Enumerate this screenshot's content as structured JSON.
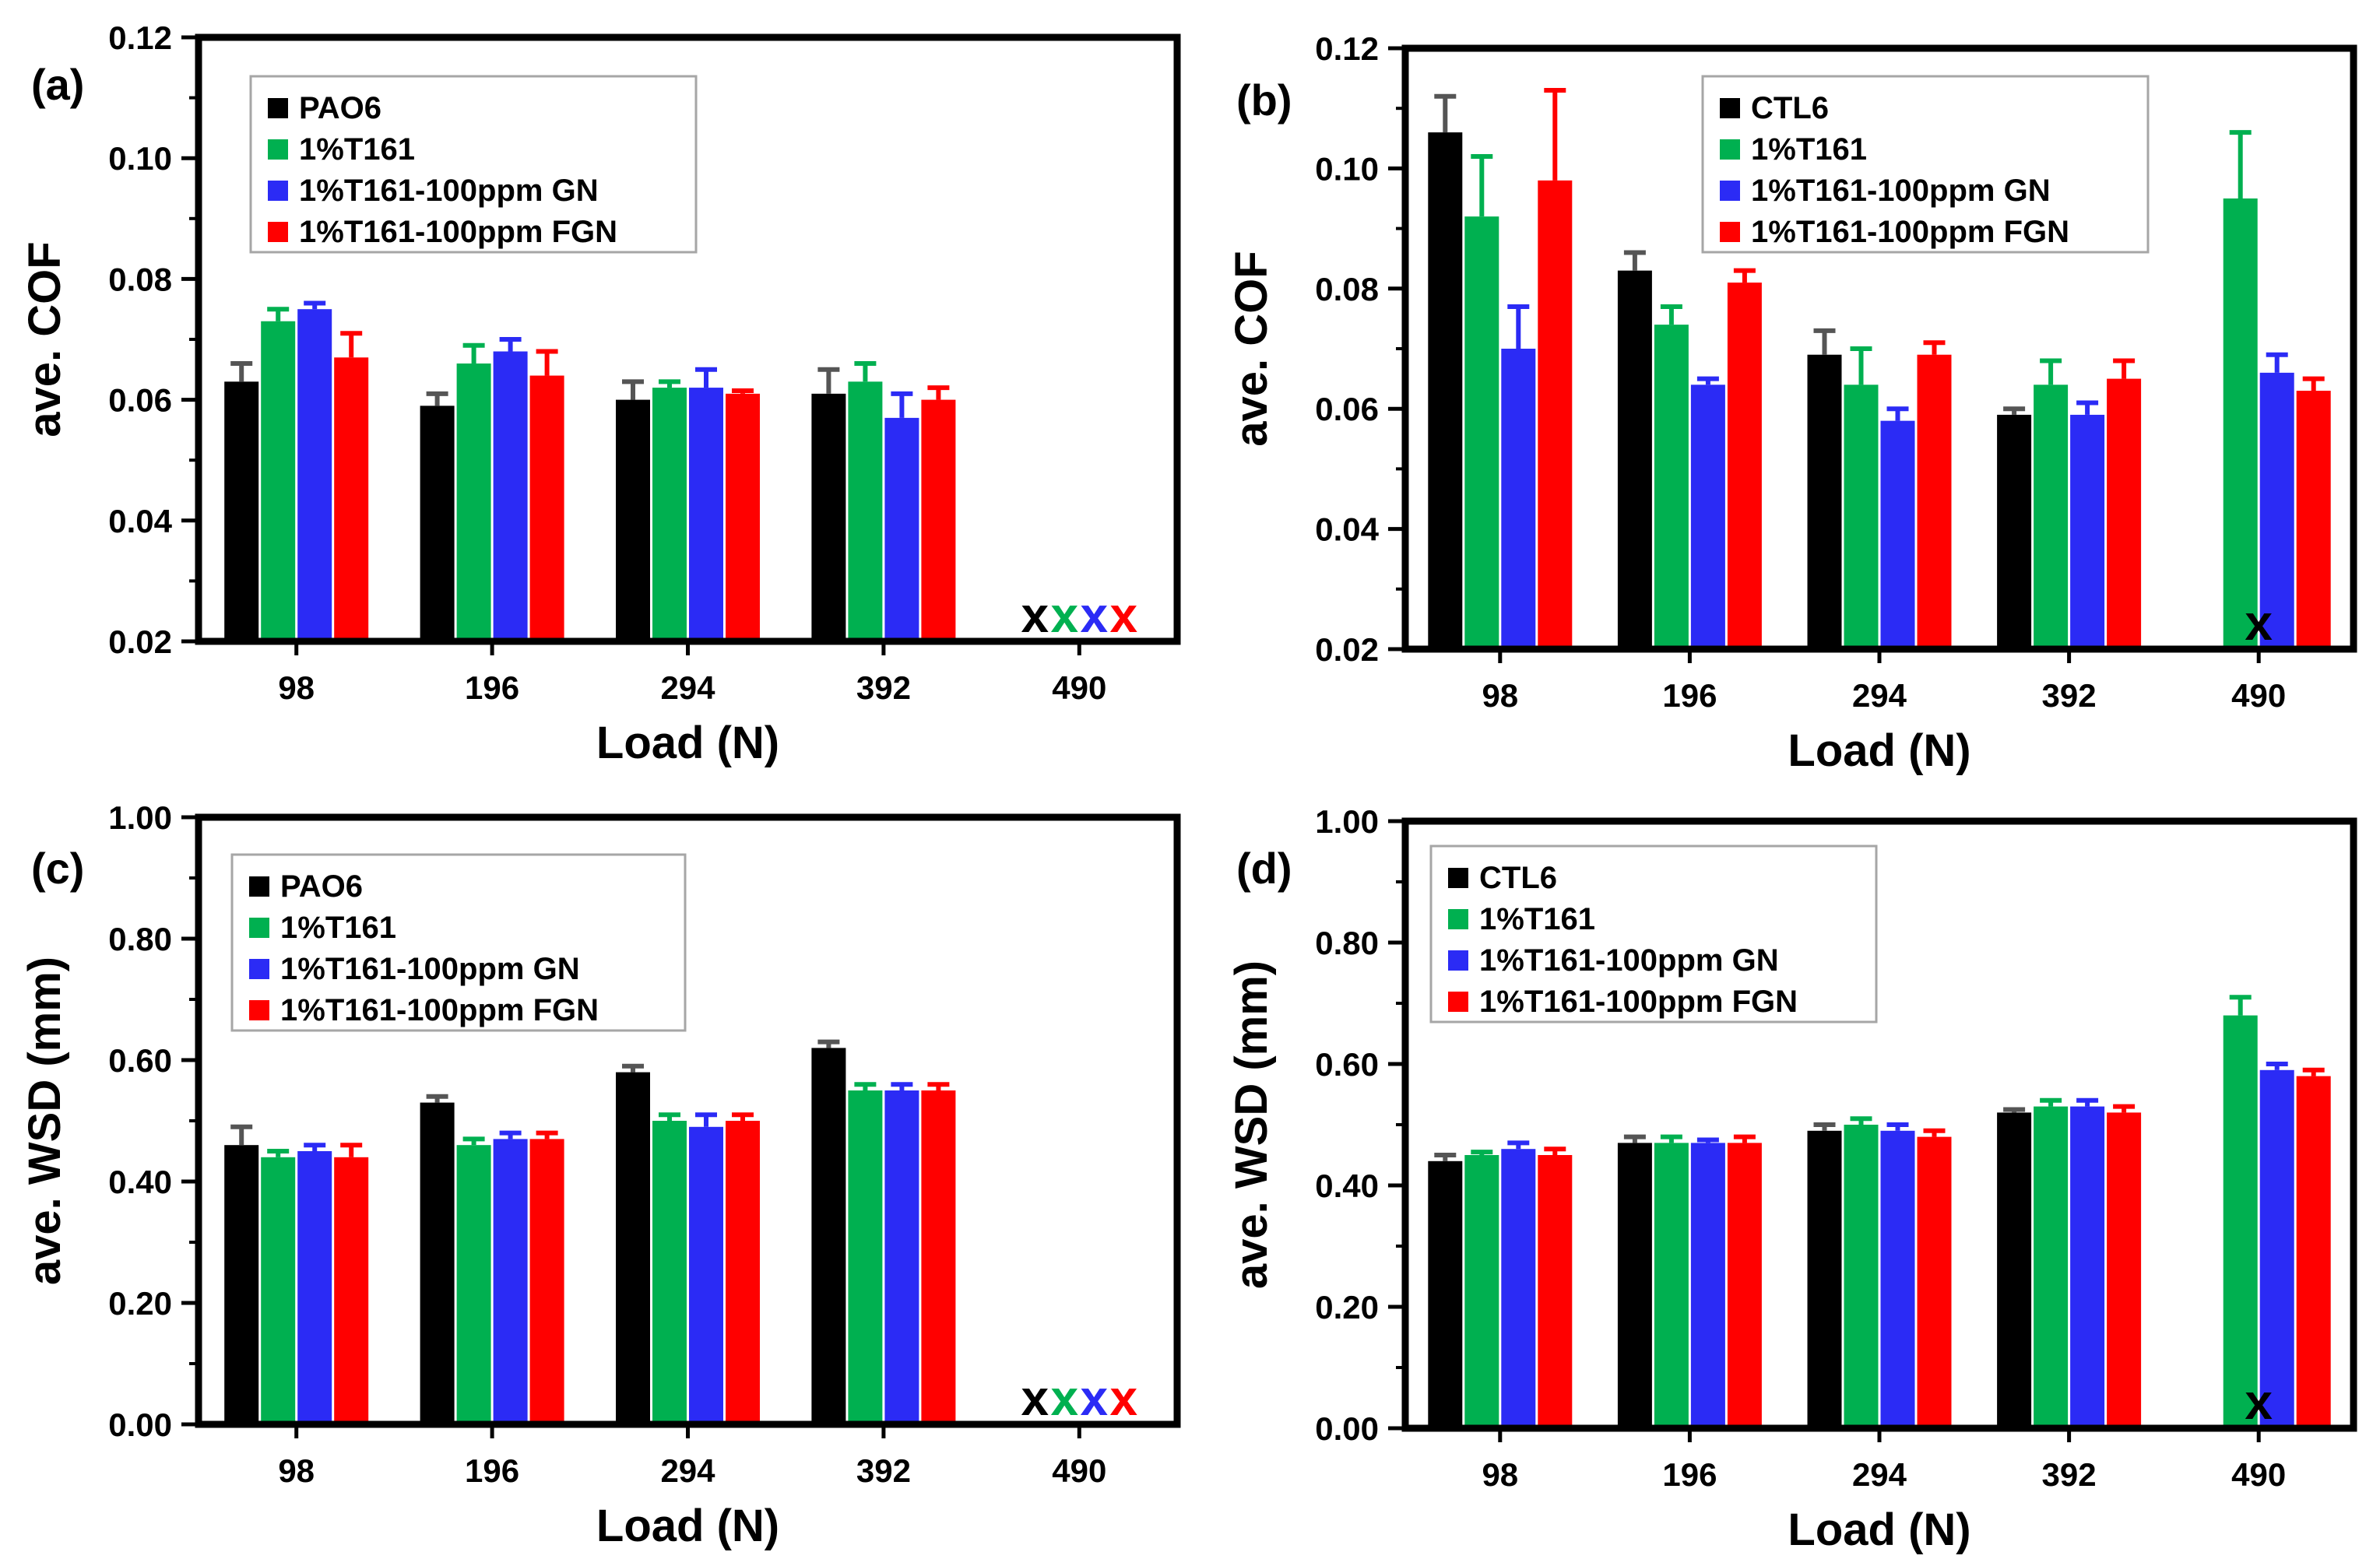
{
  "figure": {
    "colors": {
      "black": "#000000",
      "green": "#00b050",
      "blue": "#2b2bf5",
      "red": "#ff0000",
      "errorbar_black": "#555555",
      "legend_border": "#a6a6a6"
    },
    "failure_marker": "x"
  },
  "chart_data": [
    {
      "id": "a",
      "type": "bar",
      "panel_label": "(a)",
      "xlabel": "Load (N)",
      "ylabel": "ave. COF",
      "ylim": [
        0.02,
        0.12
      ],
      "yticks": [
        "0.02",
        "0.04",
        "0.06",
        "0.08",
        "0.10",
        "0.12"
      ],
      "categories": [
        "98",
        "196",
        "294",
        "392",
        "490"
      ],
      "legend_position": "top-left",
      "series": [
        {
          "name": "PAO6",
          "color": "black",
          "values": [
            0.063,
            0.059,
            0.06,
            0.061,
            null
          ],
          "errors": [
            0.003,
            0.002,
            0.003,
            0.004,
            null
          ],
          "failed": [
            false,
            false,
            false,
            false,
            true
          ]
        },
        {
          "name": "1%T161",
          "color": "green",
          "values": [
            0.073,
            0.066,
            0.062,
            0.063,
            null
          ],
          "errors": [
            0.002,
            0.003,
            0.001,
            0.003,
            null
          ],
          "failed": [
            false,
            false,
            false,
            false,
            true
          ]
        },
        {
          "name": "1%T161-100ppm GN",
          "color": "blue",
          "values": [
            0.075,
            0.068,
            0.062,
            0.057,
            null
          ],
          "errors": [
            0.001,
            0.002,
            0.003,
            0.004,
            null
          ],
          "failed": [
            false,
            false,
            false,
            false,
            true
          ]
        },
        {
          "name": "1%T161-100ppm FGN",
          "color": "red",
          "values": [
            0.067,
            0.064,
            0.061,
            0.06,
            null
          ],
          "errors": [
            0.004,
            0.004,
            0.0005,
            0.002,
            null
          ],
          "failed": [
            false,
            false,
            false,
            false,
            true
          ]
        }
      ]
    },
    {
      "id": "b",
      "type": "bar",
      "panel_label": "(b)",
      "xlabel": "Load (N)",
      "ylabel": "ave. COF",
      "ylim": [
        0.02,
        0.12
      ],
      "yticks": [
        "0.02",
        "0.04",
        "0.06",
        "0.08",
        "0.10",
        "0.12"
      ],
      "categories": [
        "98",
        "196",
        "294",
        "392",
        "490"
      ],
      "legend_position": "top-center",
      "series": [
        {
          "name": "CTL6",
          "color": "black",
          "values": [
            0.106,
            0.083,
            0.069,
            0.059,
            null
          ],
          "errors": [
            0.006,
            0.003,
            0.004,
            0.001,
            null
          ],
          "failed": [
            false,
            false,
            false,
            false,
            true
          ]
        },
        {
          "name": "1%T161",
          "color": "green",
          "values": [
            0.092,
            0.074,
            0.064,
            0.064,
            0.095
          ],
          "errors": [
            0.01,
            0.003,
            0.006,
            0.004,
            0.011
          ],
          "failed": [
            false,
            false,
            false,
            false,
            false
          ]
        },
        {
          "name": "1%T161-100ppm GN",
          "color": "blue",
          "values": [
            0.07,
            0.064,
            0.058,
            0.059,
            0.066
          ],
          "errors": [
            0.007,
            0.001,
            0.002,
            0.002,
            0.003
          ],
          "failed": [
            false,
            false,
            false,
            false,
            false
          ]
        },
        {
          "name": "1%T161-100ppm FGN",
          "color": "red",
          "values": [
            0.098,
            0.081,
            0.069,
            0.065,
            0.063
          ],
          "errors": [
            0.015,
            0.002,
            0.002,
            0.003,
            0.002
          ],
          "failed": [
            false,
            false,
            false,
            false,
            false
          ]
        }
      ]
    },
    {
      "id": "c",
      "type": "bar",
      "panel_label": "(c)",
      "xlabel": "Load (N)",
      "ylabel": "ave. WSD (mm)",
      "ylim": [
        0.0,
        1.0
      ],
      "yticks": [
        "0.00",
        "0.20",
        "0.40",
        "0.60",
        "0.80",
        "1.00"
      ],
      "categories": [
        "98",
        "196",
        "294",
        "392",
        "490"
      ],
      "legend_position": "top-left",
      "series": [
        {
          "name": "PAO6",
          "color": "black",
          "values": [
            0.46,
            0.53,
            0.58,
            0.62,
            null
          ],
          "errors": [
            0.03,
            0.01,
            0.01,
            0.01,
            null
          ],
          "failed": [
            false,
            false,
            false,
            false,
            true
          ]
        },
        {
          "name": "1%T161",
          "color": "green",
          "values": [
            0.44,
            0.46,
            0.5,
            0.55,
            null
          ],
          "errors": [
            0.01,
            0.01,
            0.01,
            0.01,
            null
          ],
          "failed": [
            false,
            false,
            false,
            false,
            true
          ]
        },
        {
          "name": "1%T161-100ppm GN",
          "color": "blue",
          "values": [
            0.45,
            0.47,
            0.49,
            0.55,
            null
          ],
          "errors": [
            0.01,
            0.01,
            0.02,
            0.01,
            null
          ],
          "failed": [
            false,
            false,
            false,
            false,
            true
          ]
        },
        {
          "name": "1%T161-100ppm FGN",
          "color": "red",
          "values": [
            0.44,
            0.47,
            0.5,
            0.55,
            null
          ],
          "errors": [
            0.02,
            0.01,
            0.01,
            0.01,
            null
          ],
          "failed": [
            false,
            false,
            false,
            false,
            true
          ]
        }
      ]
    },
    {
      "id": "d",
      "type": "bar",
      "panel_label": "(d)",
      "xlabel": "Load (N)",
      "ylabel": "ave. WSD (mm)",
      "ylim": [
        0.0,
        1.0
      ],
      "yticks": [
        "0.00",
        "0.20",
        "0.40",
        "0.60",
        "0.80",
        "1.00"
      ],
      "categories": [
        "98",
        "196",
        "294",
        "392",
        "490"
      ],
      "legend_position": "top-left",
      "series": [
        {
          "name": "CTL6",
          "color": "black",
          "values": [
            0.44,
            0.47,
            0.49,
            0.52,
            null
          ],
          "errors": [
            0.01,
            0.01,
            0.01,
            0.005,
            null
          ],
          "failed": [
            false,
            false,
            false,
            false,
            true
          ]
        },
        {
          "name": "1%T161",
          "color": "green",
          "values": [
            0.45,
            0.47,
            0.5,
            0.53,
            0.68
          ],
          "errors": [
            0.005,
            0.01,
            0.01,
            0.01,
            0.03
          ],
          "failed": [
            false,
            false,
            false,
            false,
            false
          ]
        },
        {
          "name": "1%T161-100ppm GN",
          "color": "blue",
          "values": [
            0.46,
            0.47,
            0.49,
            0.53,
            0.59
          ],
          "errors": [
            0.01,
            0.005,
            0.01,
            0.01,
            0.01
          ],
          "failed": [
            false,
            false,
            false,
            false,
            false
          ]
        },
        {
          "name": "1%T161-100ppm FGN",
          "color": "red",
          "values": [
            0.45,
            0.47,
            0.48,
            0.52,
            0.58
          ],
          "errors": [
            0.01,
            0.01,
            0.01,
            0.01,
            0.01
          ],
          "failed": [
            false,
            false,
            false,
            false,
            false
          ]
        }
      ]
    }
  ]
}
